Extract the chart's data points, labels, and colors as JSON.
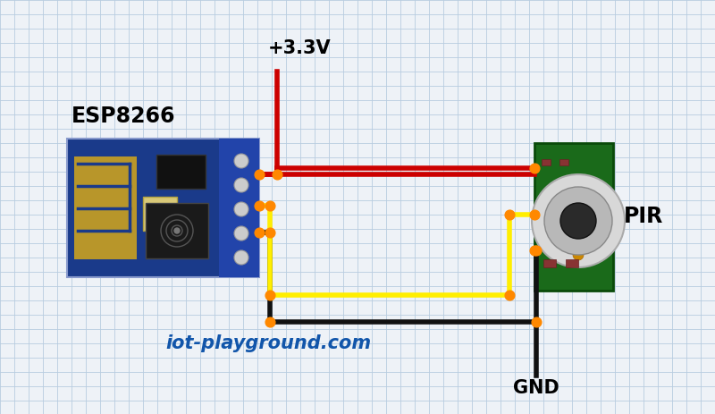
{
  "bg_color": "#eef2f7",
  "grid_color": "#b8cce0",
  "esp_label": "ESP8266",
  "pir_label": "PIR",
  "vcc_label": "+3.3V",
  "gnd_label": "GND",
  "watermark": "iot-playground.com",
  "wire_lw": 4,
  "dot_size": 60,
  "red_wire": "#cc0000",
  "yellow_wire": "#ffee00",
  "black_wire": "#111111",
  "dot_color": "#ff8800"
}
